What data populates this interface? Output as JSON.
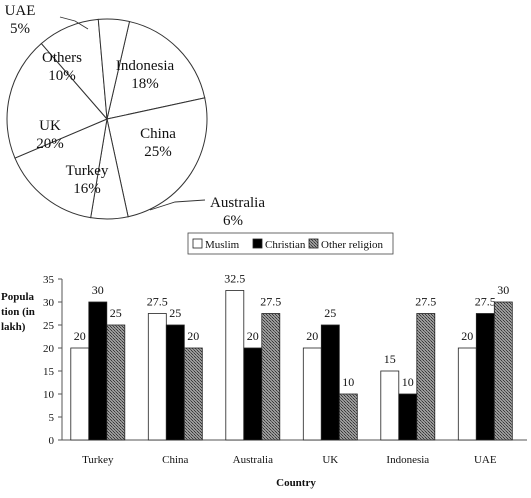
{
  "chart_data": [
    {
      "type": "pie",
      "slices": [
        {
          "label": "Indonesia",
          "value": 18,
          "display": "18%"
        },
        {
          "label": "China",
          "value": 25,
          "display": "25%"
        },
        {
          "label": "Australia",
          "value": 6,
          "display": "6%"
        },
        {
          "label": "Turkey",
          "value": 16,
          "display": "16%"
        },
        {
          "label": "UK",
          "value": 20,
          "display": "20%"
        },
        {
          "label": "Others",
          "value": 10,
          "display": "10%"
        },
        {
          "label": "UAE",
          "value": 5,
          "display": "5%"
        }
      ],
      "colors": {
        "fill": "#ffffff",
        "stroke": "#333333"
      }
    },
    {
      "type": "bar",
      "categories": [
        "Turkey",
        "China",
        "Australia",
        "UK",
        "Indonesia",
        "UAE"
      ],
      "series": [
        {
          "name": "Muslim",
          "values": [
            20,
            27.5,
            32.5,
            20,
            15,
            20
          ],
          "labels": [
            "20",
            "27.5",
            "32.5",
            "20",
            "15",
            "20"
          ],
          "color": "#ffffff"
        },
        {
          "name": "Christian",
          "values": [
            30,
            25,
            20,
            25,
            10,
            27.5
          ],
          "labels": [
            "30",
            "25",
            "20",
            "25",
            "10",
            "27.5"
          ],
          "color": "#000000"
        },
        {
          "name": "Other religion",
          "values": [
            25,
            20,
            27.5,
            10,
            27.5,
            30
          ],
          "labels": [
            "25",
            "20",
            "27.5",
            "10",
            "27.5",
            "30"
          ],
          "color": "#777777"
        }
      ],
      "ylabel": "Population (in lakh)",
      "ylabel_lines": [
        "Popula",
        "tion (in",
        "lakh)"
      ],
      "xlabel": "Country",
      "ylim": [
        0,
        35
      ],
      "yticks": [
        0,
        5,
        10,
        15,
        20,
        25,
        30,
        35
      ],
      "grid": false,
      "legend_position": "top-center"
    }
  ]
}
